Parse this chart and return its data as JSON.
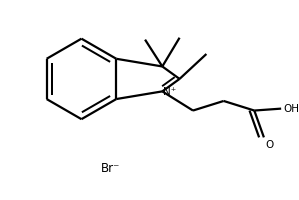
{
  "background_color": "#ffffff",
  "line_color": "#000000",
  "line_width": 1.6,
  "Br_label": "Br⁻",
  "N_plus_label": "N⁺",
  "OH_label": "OH",
  "O_label": "O"
}
